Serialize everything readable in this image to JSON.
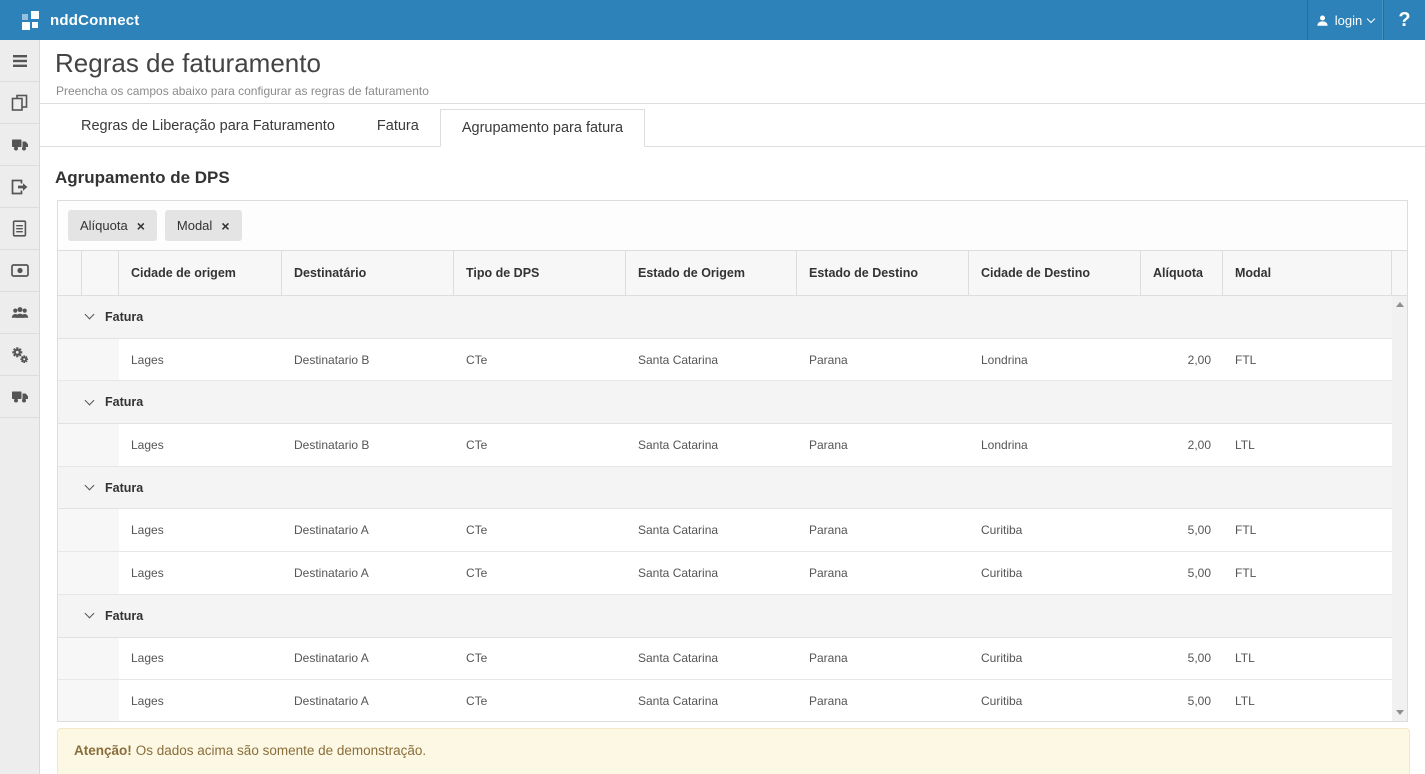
{
  "topbar": {
    "brand": "nddConnect",
    "login_label": "login",
    "help_label": "?"
  },
  "sidebar": {
    "items": [
      {
        "icon": "menu-icon"
      },
      {
        "icon": "copy-icon"
      },
      {
        "icon": "truck-icon"
      },
      {
        "icon": "export-icon"
      },
      {
        "icon": "document-icon"
      },
      {
        "icon": "money-icon"
      },
      {
        "icon": "users-icon"
      },
      {
        "icon": "gears-icon"
      },
      {
        "icon": "truck-icon"
      }
    ]
  },
  "page": {
    "title": "Regras de faturamento",
    "subtitle": "Preencha os campos abaixo para configurar as regras de faturamento"
  },
  "tabs": [
    {
      "label": "Regras de Liberação para Faturamento",
      "active": false
    },
    {
      "label": "Fatura",
      "active": false
    },
    {
      "label": "Agrupamento para fatura",
      "active": true
    }
  ],
  "section_title": "Agrupamento de DPS",
  "filters": [
    {
      "label": "Alíquota"
    },
    {
      "label": "Modal"
    }
  ],
  "table": {
    "columns": [
      "Cidade de origem",
      "Destinatário",
      "Tipo de DPS",
      "Estado de Origem",
      "Estado de Destino",
      "Cidade de Destino",
      "Alíquota",
      "Modal"
    ],
    "groups": [
      {
        "label": "Fatura",
        "rows": [
          [
            "Lages",
            "Destinatario B",
            "CTe",
            "Santa Catarina",
            "Parana",
            "Londrina",
            "2,00",
            "FTL"
          ]
        ]
      },
      {
        "label": "Fatura",
        "rows": [
          [
            "Lages",
            "Destinatario B",
            "CTe",
            "Santa Catarina",
            "Parana",
            "Londrina",
            "2,00",
            "LTL"
          ]
        ]
      },
      {
        "label": "Fatura",
        "rows": [
          [
            "Lages",
            "Destinatario A",
            "CTe",
            "Santa Catarina",
            "Parana",
            "Curitiba",
            "5,00",
            "FTL"
          ],
          [
            "Lages",
            "Destinatario A",
            "CTe",
            "Santa Catarina",
            "Parana",
            "Curitiba",
            "5,00",
            "FTL"
          ]
        ]
      },
      {
        "label": "Fatura",
        "rows": [
          [
            "Lages",
            "Destinatario A",
            "CTe",
            "Santa Catarina",
            "Parana",
            "Curitiba",
            "5,00",
            "LTL"
          ],
          [
            "Lages",
            "Destinatario A",
            "CTe",
            "Santa Catarina",
            "Parana",
            "Curitiba",
            "5,00",
            "LTL"
          ]
        ]
      }
    ]
  },
  "warning": {
    "title": "Atenção!",
    "text": "Os dados acima são somente de demonstração."
  },
  "colors": {
    "brand_blue": "#2d83b9",
    "warning_bg": "#fcf8e3",
    "warning_text": "#8a6d3b",
    "header_bg": "#f7f7f7",
    "group_row_bg": "#f4f4f4"
  }
}
